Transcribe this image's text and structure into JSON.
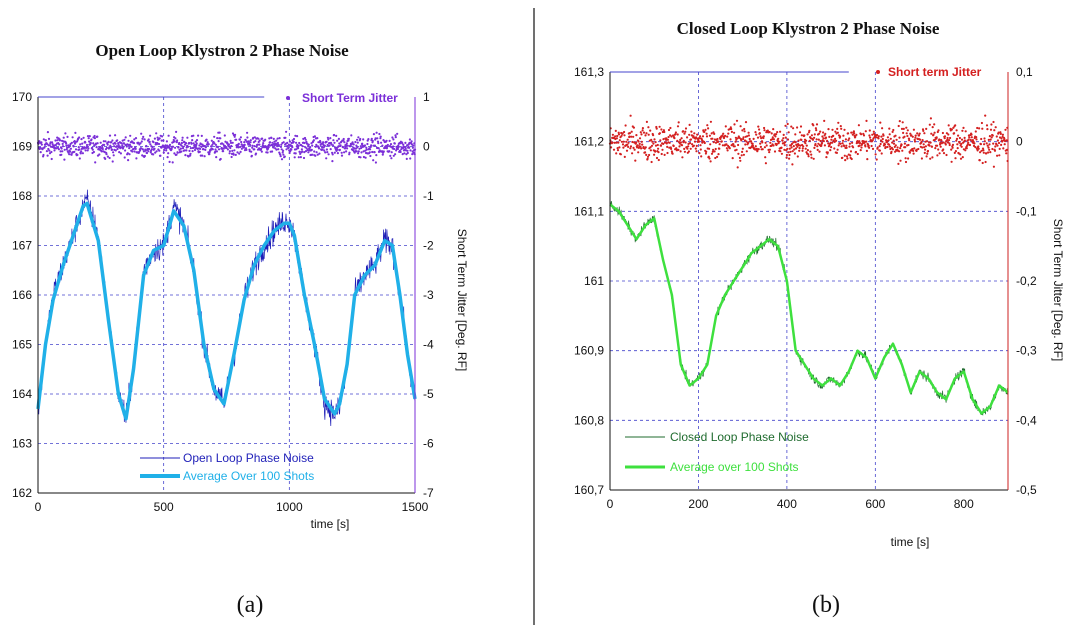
{
  "caption_a": "(a)",
  "caption_b": "(b)",
  "chart_data": [
    {
      "type": "line",
      "title": "Open Loop Klystron 2 Phase Noise",
      "xlabel": "time [s]",
      "ylabel": "",
      "y2label": "Short Term Jitter [Deg. RF]",
      "xlim": [
        0,
        1500
      ],
      "ylim": [
        162,
        170
      ],
      "y2lim": [
        -7,
        1
      ],
      "xticks": [
        "0",
        "500",
        "1000",
        "1500"
      ],
      "yticks": [
        "162",
        "163",
        "164",
        "165",
        "166",
        "167",
        "168",
        "169",
        "170"
      ],
      "y2ticks": [
        "-7",
        "-6",
        "-5",
        "-4",
        "-3",
        "-2",
        "-1",
        "0",
        "1"
      ],
      "grid": true,
      "legend": "bottom-center",
      "colors": {
        "raw": "#1f1fb8",
        "avg": "#20b0e8",
        "jitter": "#7b2fd8",
        "axis2": "#7b2fd8"
      },
      "series": [
        {
          "name": "Open Loop Phase Noise",
          "axis": "left",
          "style": "thin",
          "x": [
            0,
            30,
            60,
            100,
            140,
            180,
            195,
            240,
            280,
            320,
            350,
            380,
            420,
            460,
            500,
            540,
            580,
            620,
            660,
            700,
            740,
            780,
            820,
            860,
            900,
            940,
            980,
            1000,
            1020,
            1060,
            1100,
            1140,
            1180,
            1200,
            1230,
            1260,
            1300,
            1340,
            1380,
            1410,
            1440,
            1470,
            1500
          ],
          "values": [
            163.6,
            165.0,
            166.0,
            166.6,
            167.2,
            167.8,
            167.9,
            167.2,
            165.5,
            164.0,
            163.5,
            164.5,
            166.5,
            166.9,
            167.0,
            167.8,
            167.4,
            166.5,
            165.0,
            164.1,
            163.8,
            164.8,
            165.9,
            166.6,
            167.0,
            167.3,
            167.5,
            167.5,
            167.2,
            166.0,
            165.0,
            163.8,
            163.6,
            163.7,
            164.5,
            166.0,
            166.4,
            166.6,
            167.1,
            167.0,
            166.0,
            164.8,
            163.8
          ]
        },
        {
          "name": "Average Over 100 Shots",
          "axis": "left",
          "style": "thick",
          "x": [
            0,
            30,
            60,
            100,
            140,
            180,
            195,
            240,
            280,
            320,
            350,
            380,
            420,
            460,
            500,
            540,
            580,
            620,
            660,
            700,
            740,
            780,
            820,
            860,
            900,
            940,
            980,
            1000,
            1020,
            1060,
            1100,
            1140,
            1180,
            1200,
            1230,
            1260,
            1300,
            1340,
            1380,
            1410,
            1440,
            1470,
            1500
          ],
          "values": [
            163.7,
            165.0,
            165.9,
            166.6,
            167.2,
            167.8,
            167.85,
            167.1,
            165.5,
            164.0,
            163.5,
            164.5,
            166.4,
            166.9,
            167.0,
            167.7,
            167.4,
            166.5,
            165.0,
            164.1,
            163.8,
            164.8,
            165.9,
            166.6,
            167.0,
            167.3,
            167.45,
            167.45,
            167.2,
            166.0,
            165.0,
            163.9,
            163.6,
            163.8,
            164.6,
            166.0,
            166.4,
            166.6,
            167.1,
            167.0,
            166.0,
            164.8,
            163.9
          ]
        },
        {
          "name": "Short Term Jitter",
          "axis": "right",
          "style": "scatter",
          "x_range": [
            0,
            1500
          ],
          "center": 0,
          "spread": 0.35
        }
      ]
    },
    {
      "type": "line",
      "title": "Closed Loop Klystron 2 Phase Noise",
      "xlabel": "time [s]",
      "ylabel": "",
      "y2label": "Short Term Jitter [Deg. RF]",
      "xlim": [
        0,
        900
      ],
      "ylim": [
        160.7,
        161.3
      ],
      "y2lim": [
        -0.5,
        0.1
      ],
      "xticks": [
        "0",
        "200",
        "400",
        "600",
        "800"
      ],
      "yticks": [
        "160,7",
        "160,8",
        "160,9",
        "161",
        "161,1",
        "161,2",
        "161,3"
      ],
      "y2ticks": [
        "-0,5",
        "-0,4",
        "-0,3",
        "-0,2",
        "-0,1",
        "0",
        "0,1"
      ],
      "grid": true,
      "legend": "bottom-left",
      "colors": {
        "raw": "#1f6b2e",
        "avg": "#3ee03e",
        "jitter": "#d42020",
        "axis2": "#cc2222"
      },
      "series": [
        {
          "name": "Closed Loop Phase Noise",
          "axis": "left",
          "style": "thin",
          "x": [
            0,
            20,
            40,
            60,
            80,
            100,
            120,
            140,
            160,
            180,
            200,
            220,
            240,
            260,
            280,
            300,
            320,
            340,
            360,
            380,
            400,
            420,
            440,
            460,
            480,
            500,
            520,
            540,
            560,
            580,
            600,
            620,
            640,
            660,
            680,
            700,
            720,
            740,
            760,
            780,
            800,
            820,
            840,
            860,
            880,
            900
          ],
          "values": [
            161.11,
            161.1,
            161.08,
            161.06,
            161.08,
            161.09,
            161.03,
            160.98,
            160.88,
            160.85,
            160.86,
            160.88,
            160.95,
            160.98,
            161.0,
            161.02,
            161.04,
            161.05,
            161.06,
            161.05,
            161.0,
            160.9,
            160.88,
            160.86,
            160.85,
            160.86,
            160.85,
            160.87,
            160.9,
            160.89,
            160.86,
            160.89,
            160.91,
            160.88,
            160.84,
            160.87,
            160.86,
            160.84,
            160.83,
            160.86,
            160.87,
            160.83,
            160.81,
            160.82,
            160.85,
            160.84
          ]
        },
        {
          "name": "Average over 100 Shots",
          "axis": "left",
          "style": "thick",
          "x": [
            0,
            20,
            40,
            60,
            80,
            100,
            120,
            140,
            160,
            180,
            200,
            220,
            240,
            260,
            280,
            300,
            320,
            340,
            360,
            380,
            400,
            420,
            440,
            460,
            480,
            500,
            520,
            540,
            560,
            580,
            600,
            620,
            640,
            660,
            680,
            700,
            720,
            740,
            760,
            780,
            800,
            820,
            840,
            860,
            880,
            900
          ],
          "values": [
            161.11,
            161.1,
            161.08,
            161.06,
            161.08,
            161.09,
            161.03,
            160.98,
            160.88,
            160.85,
            160.86,
            160.88,
            160.95,
            160.98,
            161.0,
            161.02,
            161.04,
            161.05,
            161.06,
            161.05,
            161.0,
            160.9,
            160.88,
            160.86,
            160.85,
            160.86,
            160.85,
            160.87,
            160.9,
            160.89,
            160.86,
            160.89,
            160.91,
            160.88,
            160.84,
            160.87,
            160.86,
            160.84,
            160.83,
            160.86,
            160.87,
            160.83,
            160.81,
            160.82,
            160.85,
            160.84
          ]
        },
        {
          "name": "Short term Jitter",
          "axis": "right",
          "style": "scatter",
          "x_range": [
            0,
            900
          ],
          "center": 0,
          "spread": 0.04
        }
      ]
    }
  ]
}
